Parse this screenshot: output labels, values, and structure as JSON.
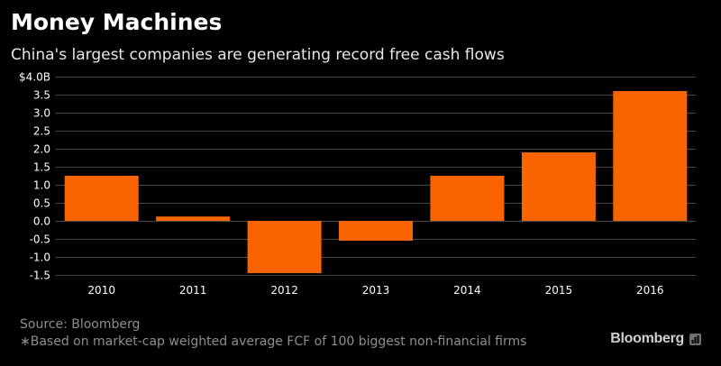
{
  "header": {
    "title": "Money Machines",
    "subtitle": "China's largest companies are generating record free cash flows"
  },
  "colors": {
    "background": "#000000",
    "bar": "#fa6400",
    "grid": "#4a4a4a",
    "text": "#ffffff",
    "muted": "#8e8e8e"
  },
  "chart_data": {
    "type": "bar",
    "title": "Money Machines",
    "subtitle": "China's largest companies are generating record free cash flows",
    "categories": [
      "2010",
      "2011",
      "2012",
      "2013",
      "2014",
      "2015",
      "2016"
    ],
    "values": [
      1.25,
      0.12,
      -1.45,
      -0.55,
      1.25,
      1.9,
      3.6
    ],
    "xlabel": "",
    "ylabel": "",
    "ylim": [
      -1.5,
      4.0
    ],
    "yticks": [
      4.0,
      3.5,
      3.0,
      2.5,
      2.0,
      1.5,
      1.0,
      0.5,
      0.0,
      -0.5,
      -1.0,
      -1.5
    ],
    "ytick_labels": [
      "$4.0B",
      "3.5",
      "3.0",
      "2.5",
      "2.0",
      "1.5",
      "1.0",
      "0.5",
      "0.0",
      "-0.5",
      "-1.0",
      "-1.5"
    ],
    "grid": true,
    "legend": "none"
  },
  "footer": {
    "source": "Source: Bloomberg",
    "note": "∗Based on market-cap weighted average FCF of 100 biggest non-financial firms",
    "logo_text": "Bloomberg"
  }
}
